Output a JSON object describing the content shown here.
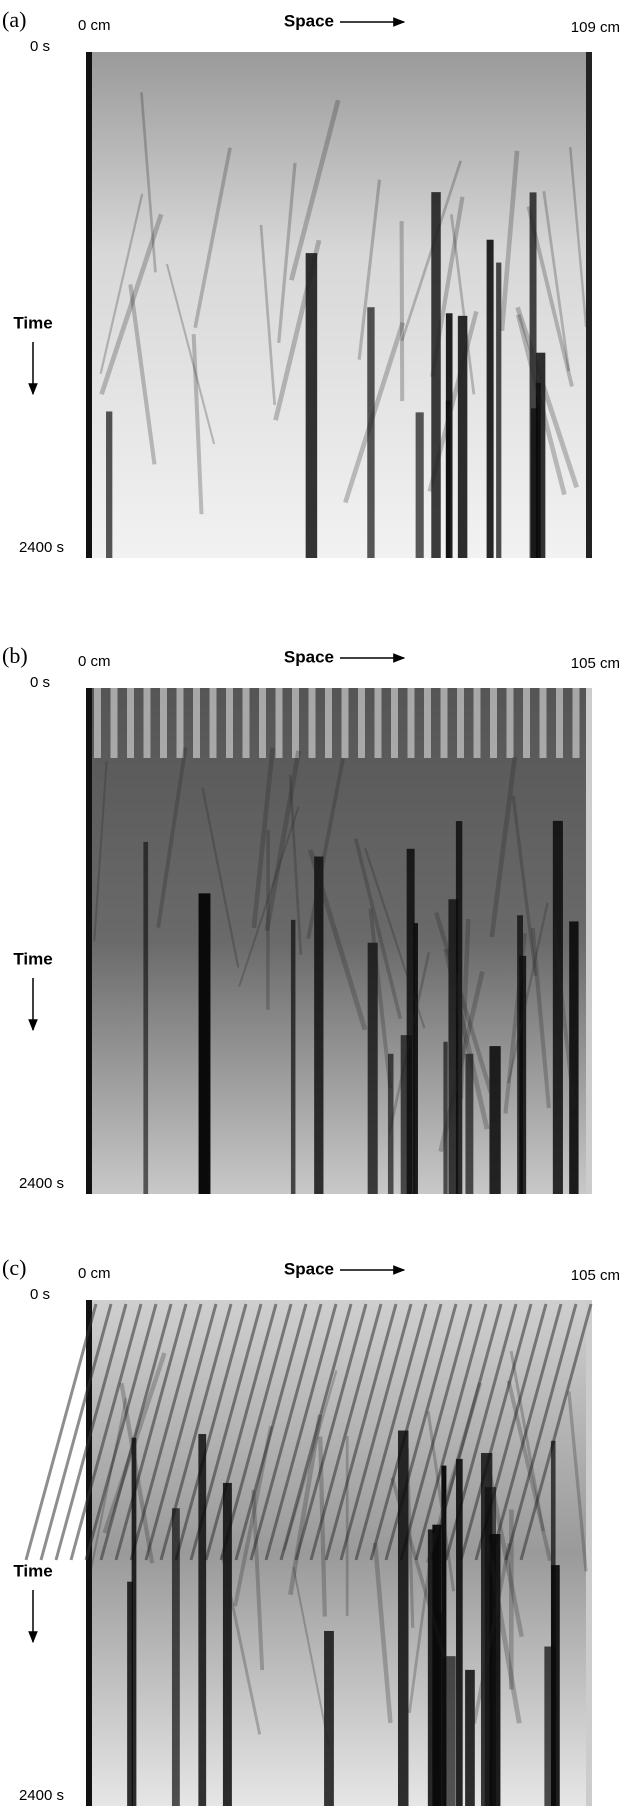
{
  "panels": [
    {
      "label": "(a)",
      "space_start": "0 cm",
      "space_label": "Space",
      "space_end": "109 cm",
      "time_start": "0 s",
      "time_label": "Time",
      "time_end": "2400 s"
    },
    {
      "label": "(b)",
      "space_start": "0 cm",
      "space_label": "Space",
      "space_end": "105 cm",
      "time_start": "0 s",
      "time_label": "Time",
      "time_end": "2400 s"
    },
    {
      "label": "(c)",
      "space_start": "0 cm",
      "space_label": "Space",
      "space_end": "105 cm",
      "time_start": "0 s",
      "time_label": "Time",
      "time_end": "2400 s"
    }
  ]
}
